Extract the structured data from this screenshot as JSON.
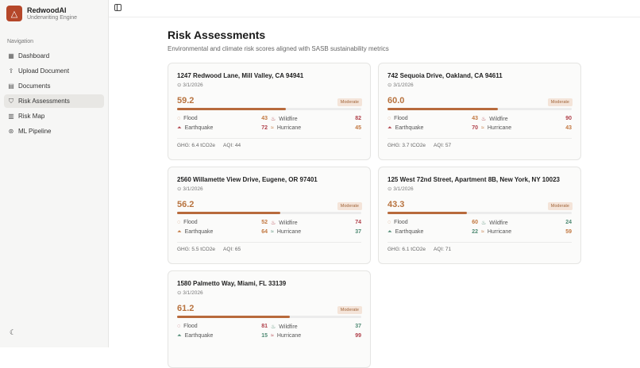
{
  "app": {
    "name": "RedwoodAI",
    "subtitle": "Underwriting Engine"
  },
  "sidebar": {
    "section": "Navigation",
    "items": [
      {
        "label": "Dashboard",
        "icon": "grid-icon"
      },
      {
        "label": "Upload Document",
        "icon": "upload-icon"
      },
      {
        "label": "Documents",
        "icon": "document-icon"
      },
      {
        "label": "Risk Assessments",
        "icon": "shield-icon",
        "active": true
      },
      {
        "label": "Risk Map",
        "icon": "map-icon"
      },
      {
        "label": "ML Pipeline",
        "icon": "pipeline-icon"
      }
    ]
  },
  "page": {
    "title": "Risk Assessments",
    "subtitle": "Environmental and climate risk scores aligned with SASB sustainability metrics"
  },
  "labels": {
    "flood": "Flood",
    "wildfire": "Wildfire",
    "earthquake": "Earthquake",
    "hurricane": "Hurricane"
  },
  "colors": {
    "low": "#4f8a73",
    "medium": "#c2773f",
    "high": "#b0404a"
  },
  "cards": [
    {
      "address": "1247 Redwood Lane, Mill Valley, CA 94941",
      "date": "3/1/2026",
      "score": "59.2",
      "level": "Moderate",
      "flood": "43",
      "wildfire": "82",
      "earthquake": "72",
      "hurricane": "45",
      "ghg": "GHG: 6.4 tCO2e",
      "aqi": "AQI: 44"
    },
    {
      "address": "742 Sequoia Drive, Oakland, CA 94611",
      "date": "3/1/2026",
      "score": "60.0",
      "level": "Moderate",
      "flood": "43",
      "wildfire": "90",
      "earthquake": "70",
      "hurricane": "43",
      "ghg": "GHG: 3.7 tCO2e",
      "aqi": "AQI: 57"
    },
    {
      "address": "2560 Willamette View Drive, Eugene, OR 97401",
      "date": "3/1/2026",
      "score": "56.2",
      "level": "Moderate",
      "flood": "52",
      "wildfire": "74",
      "earthquake": "64",
      "hurricane": "37",
      "ghg": "GHG: 5.5 tCO2e",
      "aqi": "AQI: 65"
    },
    {
      "address": "125 West 72nd Street, Apartment 8B, New York, NY 10023",
      "date": "3/1/2026",
      "score": "43.3",
      "level": "Moderate",
      "flood": "60",
      "wildfire": "24",
      "earthquake": "22",
      "hurricane": "59",
      "ghg": "GHG: 6.1 tCO2e",
      "aqi": "AQI: 71"
    },
    {
      "address": "1580 Palmetto Way, Miami, FL 33139",
      "date": "3/1/2026",
      "score": "61.2",
      "level": "Moderate",
      "flood": "81",
      "wildfire": "37",
      "earthquake": "15",
      "hurricane": "99"
    }
  ]
}
